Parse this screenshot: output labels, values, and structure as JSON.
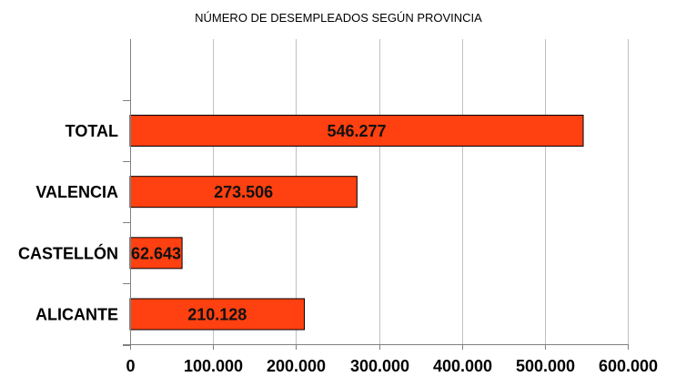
{
  "chart_data": {
    "type": "bar",
    "orientation": "horizontal",
    "title": "NÚMERO DE DESEMPLEADOS SEGÚN PROVINCIA",
    "categories": [
      "TOTAL",
      "VALENCIA",
      "CASTELLÓN",
      "ALICANTE"
    ],
    "values": [
      546277,
      273506,
      62643,
      210128
    ],
    "data_labels": [
      "546.277",
      "273.506",
      "62.643",
      "210.128"
    ],
    "xlim": [
      0,
      600000
    ],
    "x_ticks": [
      0,
      100000,
      200000,
      300000,
      400000,
      500000,
      600000
    ],
    "x_tick_labels": [
      "0",
      "100.000",
      "200.000",
      "300.000",
      "400.000",
      "500.000",
      "600.000"
    ],
    "grid": "vertical",
    "legend": "none",
    "bar_color": "#ff4010",
    "bar_edge_color": "#000000",
    "grid_color": "#c0c0c0"
  }
}
